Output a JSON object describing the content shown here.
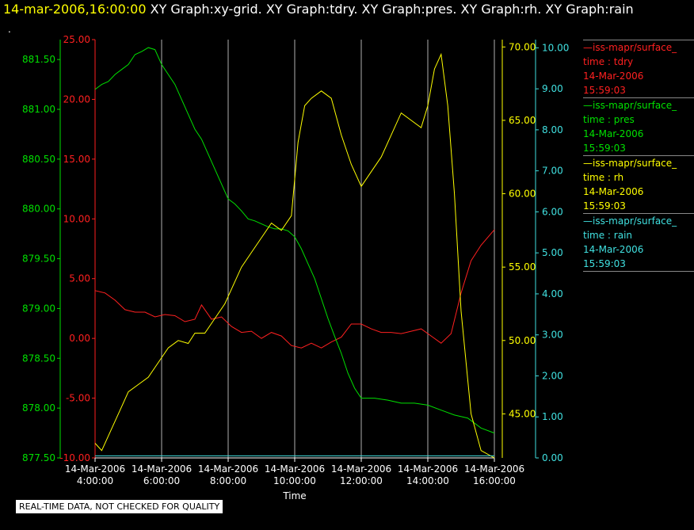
{
  "header": {
    "time": "14-mar-2006,16:00:00",
    "titles": " XY Graph:xy-grid.  XY Graph:tdry.  XY Graph:pres.  XY Graph:rh.  XY Graph:rain"
  },
  "dot": ".",
  "badge": "REAL-TIME DATA, NOT CHECKED FOR QUALITY",
  "colors": {
    "tdry": "#ff2020",
    "pres": "#00e000",
    "rh": "#ffff00",
    "rain": "#40e0e0",
    "grid": "#b0b0b0"
  },
  "legend": [
    {
      "color": "#ff2020",
      "name": "iss-mapr/surface_",
      "axes": "time : tdry",
      "date": "14-Mar-2006",
      "time": "15:59:03"
    },
    {
      "color": "#00e000",
      "name": "iss-mapr/surface_",
      "axes": "time : pres",
      "date": "14-Mar-2006",
      "time": "15:59:03"
    },
    {
      "color": "#ffff00",
      "name": "iss-mapr/surface_",
      "axes": "time : rh",
      "date": "14-Mar-2006",
      "time": "15:59:03"
    },
    {
      "color": "#40e0e0",
      "name": "iss-mapr/surface_",
      "axes": "time : rain",
      "date": "14-Mar-2006",
      "time": "15:59:03"
    }
  ],
  "chart_data": {
    "type": "line",
    "xlabel": "Time",
    "xlim": [
      4.0,
      16.0
    ],
    "xticks": [
      4,
      6,
      8,
      10,
      12,
      14,
      16
    ],
    "xtick_labels": [
      [
        "14-Mar-2006",
        "4:00:00"
      ],
      [
        "14-Mar-2006",
        "6:00:00"
      ],
      [
        "14-Mar-2006",
        "8:00:00"
      ],
      [
        "14-Mar-2006",
        "10:00:00"
      ],
      [
        "14-Mar-2006",
        "12:00:00"
      ],
      [
        "14-Mar-2006",
        "14:00:00"
      ],
      [
        "14-Mar-2006",
        "16:00:00"
      ]
    ],
    "grid": true,
    "axes": {
      "tdry": {
        "lim": [
          -10,
          25
        ],
        "ticks": [
          "-10.00",
          "-5.00",
          "0.00",
          "5.00",
          "10.00",
          "15.00",
          "20.00",
          "25.00"
        ]
      },
      "pres": {
        "lim": [
          877.5,
          881.7
        ],
        "ticks": [
          "877.50",
          "878.00",
          "878.50",
          "879.00",
          "879.50",
          "880.00",
          "880.50",
          "881.00",
          "881.50"
        ]
      },
      "rh": {
        "lim": [
          42.0,
          70.5
        ],
        "ticks": [
          "45.00",
          "50.00",
          "55.00",
          "60.00",
          "65.00",
          "70.00"
        ]
      },
      "rain": {
        "lim": [
          0,
          10.2
        ],
        "ticks": [
          "0.00",
          "1.00",
          "2.00",
          "3.00",
          "4.00",
          "5.00",
          "6.00",
          "7.00",
          "8.00",
          "9.00",
          "10.00"
        ]
      }
    },
    "series": [
      {
        "name": "tdry",
        "x": [
          4.0,
          4.3,
          4.6,
          4.9,
          5.2,
          5.5,
          5.8,
          6.1,
          6.4,
          6.7,
          7.0,
          7.2,
          7.5,
          7.8,
          8.1,
          8.4,
          8.7,
          9.0,
          9.3,
          9.6,
          9.9,
          10.2,
          10.5,
          10.8,
          11.1,
          11.4,
          11.7,
          12.0,
          12.3,
          12.6,
          12.9,
          13.2,
          13.5,
          13.8,
          14.1,
          14.4,
          14.7,
          15.0,
          15.3,
          15.6,
          16.0
        ],
        "values": [
          4.0,
          3.8,
          3.2,
          2.4,
          2.2,
          2.2,
          1.8,
          2.0,
          1.9,
          1.4,
          1.6,
          2.8,
          1.6,
          1.8,
          1.0,
          0.5,
          0.6,
          0.0,
          0.5,
          0.2,
          -0.6,
          -0.8,
          -0.4,
          -0.8,
          -0.3,
          0.1,
          1.2,
          1.2,
          0.8,
          0.5,
          0.5,
          0.4,
          0.6,
          0.8,
          0.2,
          -0.4,
          0.4,
          3.8,
          6.5,
          7.8,
          9.1
        ]
      },
      {
        "name": "pres",
        "x": [
          4.0,
          4.2,
          4.4,
          4.6,
          4.8,
          5.0,
          5.2,
          5.4,
          5.6,
          5.8,
          6.0,
          6.2,
          6.4,
          6.6,
          6.8,
          7.0,
          7.2,
          7.4,
          7.6,
          7.8,
          8.0,
          8.2,
          8.4,
          8.6,
          8.8,
          9.0,
          9.2,
          9.4,
          9.6,
          9.8,
          10.0,
          10.2,
          10.4,
          10.6,
          10.8,
          11.0,
          11.2,
          11.4,
          11.6,
          11.8,
          12.0,
          12.4,
          12.8,
          13.2,
          13.6,
          14.0,
          14.4,
          14.8,
          15.2,
          15.6,
          16.0
        ],
        "values": [
          881.2,
          881.25,
          881.28,
          881.35,
          881.4,
          881.45,
          881.55,
          881.58,
          881.62,
          881.6,
          881.45,
          881.35,
          881.25,
          881.1,
          880.95,
          880.8,
          880.7,
          880.55,
          880.4,
          880.25,
          880.1,
          880.05,
          879.98,
          879.9,
          879.88,
          879.85,
          879.82,
          879.8,
          879.8,
          879.78,
          879.72,
          879.6,
          879.45,
          879.3,
          879.1,
          878.9,
          878.72,
          878.55,
          878.35,
          878.2,
          878.1,
          878.1,
          878.08,
          878.05,
          878.05,
          878.03,
          877.98,
          877.93,
          877.9,
          877.8,
          877.75
        ]
      },
      {
        "name": "rh",
        "x": [
          4.0,
          4.2,
          4.4,
          4.6,
          4.8,
          5.0,
          5.3,
          5.6,
          5.9,
          6.2,
          6.5,
          6.8,
          7.0,
          7.3,
          7.6,
          7.9,
          8.1,
          8.4,
          8.7,
          9.0,
          9.3,
          9.6,
          9.9,
          10.1,
          10.3,
          10.5,
          10.8,
          11.1,
          11.4,
          11.7,
          12.0,
          12.3,
          12.6,
          12.9,
          13.2,
          13.5,
          13.8,
          14.0,
          14.2,
          14.4,
          14.6,
          14.8,
          15.0,
          15.3,
          15.6,
          16.0
        ],
        "values": [
          43.0,
          42.5,
          43.5,
          44.5,
          45.5,
          46.5,
          47.0,
          47.5,
          48.5,
          49.5,
          50.0,
          49.8,
          50.5,
          50.5,
          51.5,
          52.5,
          53.5,
          55.0,
          56.0,
          57.0,
          58.0,
          57.5,
          58.5,
          63.5,
          66.0,
          66.5,
          67.0,
          66.5,
          64.0,
          62.0,
          60.5,
          61.5,
          62.5,
          64.0,
          65.5,
          65.0,
          64.5,
          66.0,
          68.5,
          69.5,
          66.0,
          60.0,
          52.0,
          45.0,
          42.5,
          42.0
        ]
      },
      {
        "name": "rain",
        "x": [
          4.0,
          16.0
        ],
        "values": [
          0.05,
          0.05
        ]
      }
    ]
  }
}
